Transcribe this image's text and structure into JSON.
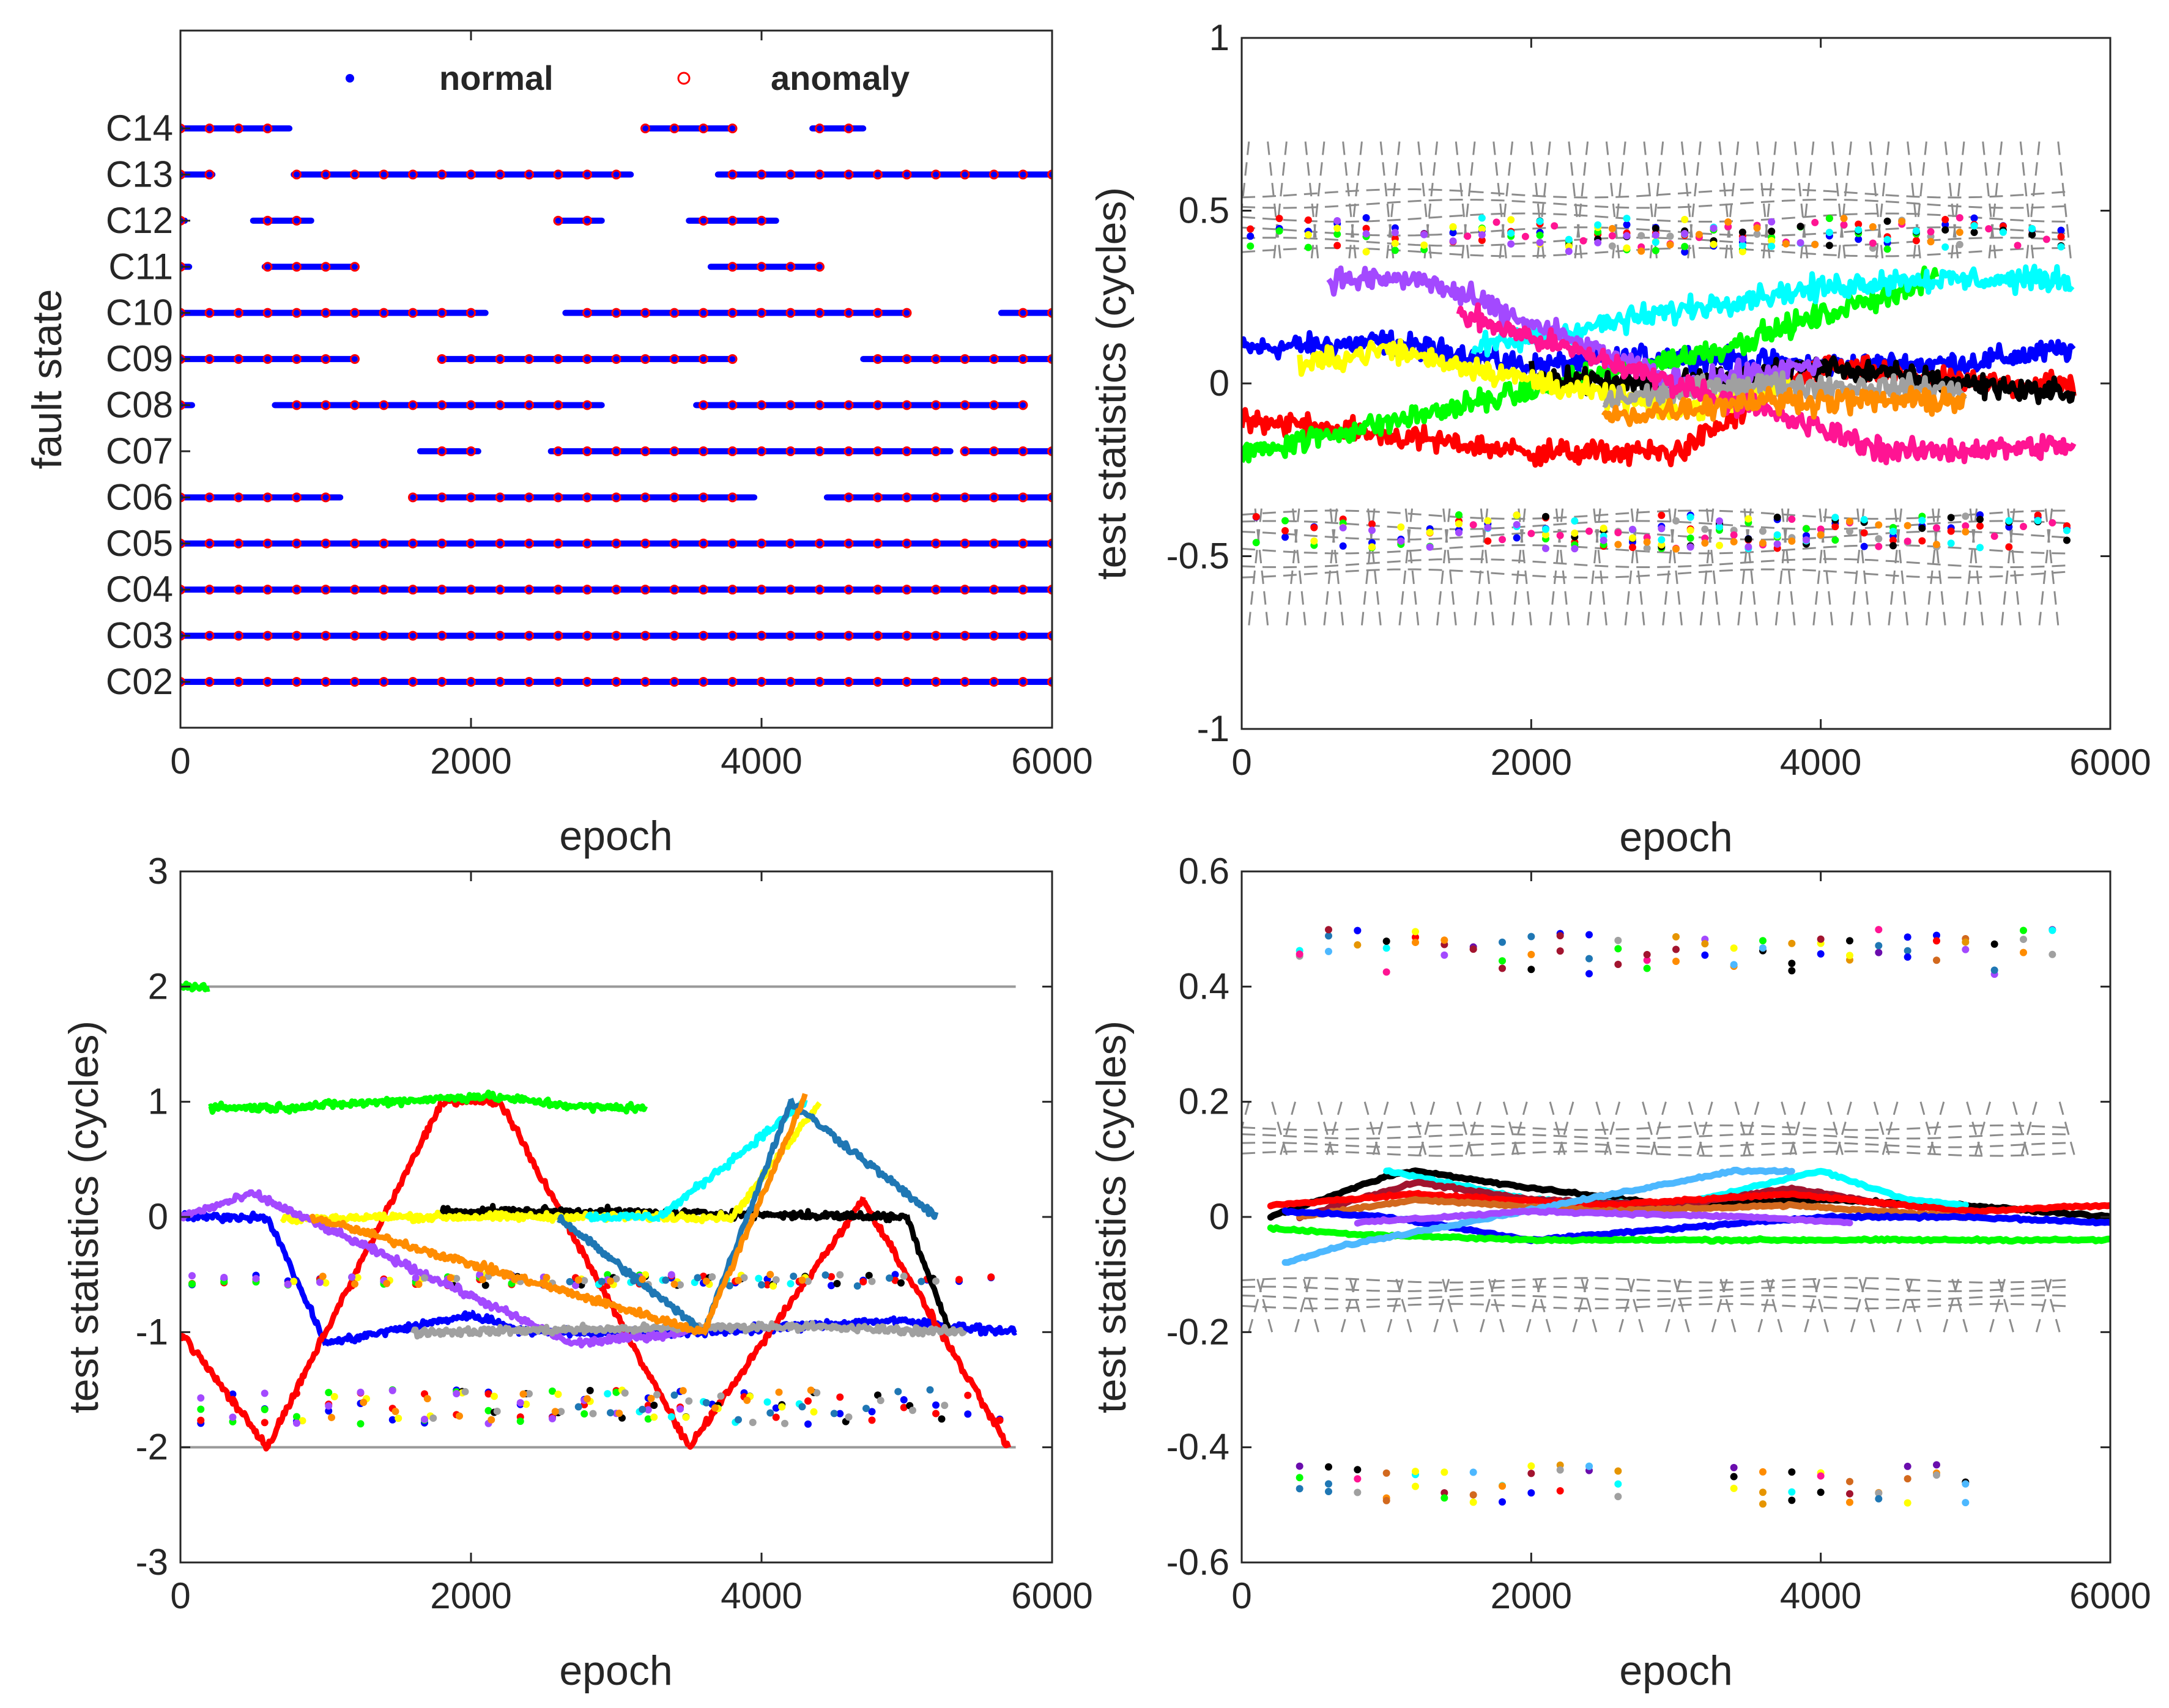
{
  "palette": [
    "#0000ff",
    "#ff0000",
    "#00ff00",
    "#000000",
    "#ffff00",
    "#00ffff",
    "#a349ff",
    "#a0a0a0",
    "#ff1493",
    "#ff8c00",
    "#e69500",
    "#1f77b4",
    "#d2691e",
    "#6a0dad",
    "#4db8ff",
    "#a2142f"
  ],
  "chart_data": [
    {
      "id": "panel-1",
      "type": "scatter",
      "title": "",
      "xlabel": "epoch",
      "ylabel": "fault state",
      "xlim": [
        0,
        6000
      ],
      "xticks": [
        0,
        2000,
        4000,
        6000
      ],
      "categories": [
        "C02",
        "C03",
        "C04",
        "C05",
        "C06",
        "C07",
        "C08",
        "C09",
        "C10",
        "C11",
        "C12",
        "C13",
        "C14"
      ],
      "legend": [
        {
          "label": "normal",
          "marker": "dot",
          "color": "#0000ff"
        },
        {
          "label": "anomaly",
          "marker": "circle",
          "color": "#ff0000"
        }
      ],
      "segments": {
        "C14": [
          [
            0,
            750
          ],
          [
            3200,
            3800
          ],
          [
            4350,
            4700
          ]
        ],
        "C13": [
          [
            0,
            220
          ],
          [
            780,
            3100
          ],
          [
            3700,
            6000
          ]
        ],
        "C12": [
          [
            0,
            30
          ],
          [
            500,
            900
          ],
          [
            2600,
            2900
          ],
          [
            3500,
            4100
          ]
        ],
        "C11": [
          [
            0,
            60
          ],
          [
            580,
            1200
          ],
          [
            3650,
            4400
          ]
        ],
        "C10": [
          [
            0,
            2100
          ],
          [
            2650,
            5000
          ],
          [
            5650,
            6000
          ]
        ],
        "C09": [
          [
            0,
            1200
          ],
          [
            1800,
            3800
          ],
          [
            4700,
            6000
          ]
        ],
        "C08": [
          [
            0,
            80
          ],
          [
            650,
            2900
          ],
          [
            3550,
            5800
          ]
        ],
        "C07": [
          [
            1650,
            2050
          ],
          [
            2550,
            5300
          ],
          [
            5400,
            6000
          ]
        ],
        "C06": [
          [
            0,
            1100
          ],
          [
            1600,
            3950
          ],
          [
            4450,
            6000
          ]
        ],
        "C05": [
          [
            0,
            6000
          ]
        ],
        "C04": [
          [
            0,
            6000
          ]
        ],
        "C03": [
          [
            0,
            6000
          ]
        ],
        "C02": [
          [
            0,
            6000
          ]
        ]
      }
    },
    {
      "id": "panel-2",
      "type": "scatter",
      "title": "",
      "xlabel": "epoch",
      "ylabel": "test statistics (cycles)",
      "xlim": [
        0,
        6000
      ],
      "ylim": [
        -1,
        1
      ],
      "xticks": [
        0,
        2000,
        4000,
        6000
      ],
      "yticks": [
        -1,
        -0.5,
        0,
        0.5,
        1
      ],
      "threshold_band": [
        -0.7,
        0.7
      ],
      "series": [
        {
          "color": "#0000ff",
          "points": [
            [
              0,
              0.1
            ],
            [
              1000,
              0.12
            ],
            [
              2000,
              0.05
            ],
            [
              3000,
              0.08
            ],
            [
              4000,
              0.05
            ],
            [
              5000,
              0.06
            ],
            [
              5750,
              0.1
            ]
          ]
        },
        {
          "color": "#ff0000",
          "points": [
            [
              0,
              -0.1
            ],
            [
              1000,
              -0.15
            ],
            [
              2000,
              -0.2
            ],
            [
              3000,
              -0.2
            ],
            [
              4000,
              0.05
            ],
            [
              5000,
              0.0
            ],
            [
              5750,
              0.0
            ]
          ]
        },
        {
          "color": "#00ff00",
          "points": [
            [
              0,
              -0.2
            ],
            [
              600,
              -0.15
            ],
            [
              3300,
              0.1
            ],
            [
              4400,
              0.25
            ],
            [
              4800,
              0.3
            ]
          ]
        },
        {
          "color": "#000000",
          "points": [
            [
              2000,
              0.02
            ],
            [
              3000,
              0.0
            ],
            [
              4000,
              0.05
            ],
            [
              5000,
              0.0
            ],
            [
              5750,
              -0.03
            ]
          ]
        },
        {
          "color": "#ffff00",
          "points": [
            [
              400,
              0.05
            ],
            [
              1000,
              0.1
            ],
            [
              3000,
              -0.08
            ],
            [
              3800,
              0.0
            ]
          ]
        },
        {
          "color": "#00ffff",
          "points": [
            [
              1600,
              0.1
            ],
            [
              3500,
              0.25
            ],
            [
              4500,
              0.3
            ],
            [
              5750,
              0.3
            ]
          ]
        },
        {
          "color": "#a349ff",
          "points": [
            [
              600,
              0.3
            ],
            [
              1250,
              0.3
            ],
            [
              3000,
              0.0
            ],
            [
              4000,
              0.05
            ]
          ]
        },
        {
          "color": "#a0a0a0",
          "points": [
            [
              2500,
              -0.05
            ],
            [
              3500,
              0.0
            ],
            [
              5000,
              -0.02
            ]
          ]
        },
        {
          "color": "#ff1493",
          "points": [
            [
              1500,
              0.2
            ],
            [
              4500,
              -0.2
            ],
            [
              5750,
              -0.18
            ]
          ]
        },
        {
          "color": "#ff8c00",
          "points": [
            [
              2500,
              -0.1
            ],
            [
              3500,
              -0.05
            ],
            [
              5000,
              -0.05
            ]
          ]
        }
      ]
    },
    {
      "id": "panel-3",
      "type": "scatter",
      "title": "",
      "xlabel": "epoch",
      "ylabel": "test statistics (cycles)",
      "xlim": [
        0,
        6000
      ],
      "ylim": [
        -3,
        3
      ],
      "xticks": [
        0,
        2000,
        4000,
        6000
      ],
      "yticks": [
        -3,
        -2,
        -1,
        0,
        1,
        2,
        3
      ],
      "bounds": [
        -2,
        2
      ],
      "series": [
        {
          "color": "#0000ff",
          "points": [
            [
              0,
              0.0
            ],
            [
              600,
              0.0
            ],
            [
              1000,
              -1.1
            ],
            [
              2000,
              -0.85
            ],
            [
              2400,
              -1.0
            ],
            [
              3600,
              -1.0
            ],
            [
              4900,
              -0.9
            ],
            [
              5750,
              -1.0
            ]
          ]
        },
        {
          "color": "#ff0000",
          "points": [
            [
              0,
              -1.0
            ],
            [
              600,
              -2.0
            ],
            [
              1800,
              1.0
            ],
            [
              2200,
              1.0
            ],
            [
              3500,
              -2.0
            ],
            [
              4700,
              0.15
            ],
            [
              5700,
              -2.0
            ]
          ]
        },
        {
          "color": "#00ff00",
          "points": [
            [
              0,
              2.0
            ],
            [
              200,
              2.0
            ],
            [
              200,
              0.95
            ],
            [
              700,
              0.95
            ],
            [
              2100,
              1.05
            ],
            [
              2800,
              0.95
            ],
            [
              3200,
              0.95
            ]
          ]
        },
        {
          "color": "#000000",
          "points": [
            [
              1800,
              0.05
            ],
            [
              2600,
              0.05
            ],
            [
              5000,
              0.0
            ],
            [
              5300,
              -1.0
            ]
          ]
        },
        {
          "color": "#ffff00",
          "points": [
            [
              700,
              -0.02
            ],
            [
              1500,
              0.0
            ],
            [
              3800,
              0.0
            ],
            [
              4400,
              1.0
            ]
          ]
        },
        {
          "color": "#00ffff",
          "points": [
            [
              2800,
              0.0
            ],
            [
              3300,
              0.0
            ],
            [
              4300,
              1.0
            ]
          ]
        },
        {
          "color": "#a349ff",
          "points": [
            [
              0,
              0.0
            ],
            [
              500,
              0.2
            ],
            [
              2700,
              -1.1
            ],
            [
              3500,
              -1.0
            ]
          ]
        },
        {
          "color": "#a0a0a0",
          "points": [
            [
              1600,
              -1.0
            ],
            [
              4200,
              -0.95
            ],
            [
              5400,
              -1.0
            ]
          ]
        },
        {
          "color": "#1f77b4",
          "points": [
            [
              2600,
              0.0
            ],
            [
              3600,
              -1.0
            ],
            [
              4200,
              1.0
            ],
            [
              5200,
              0.0
            ]
          ]
        },
        {
          "color": "#ff8c00",
          "points": [
            [
              900,
              0.0
            ],
            [
              3600,
              -1.0
            ],
            [
              4300,
              1.05
            ]
          ]
        }
      ]
    },
    {
      "id": "panel-4",
      "type": "line",
      "title": "",
      "xlabel": "epoch",
      "ylabel": "test statistics (cycles)",
      "xlim": [
        0,
        6000
      ],
      "ylim": [
        -0.6,
        0.6
      ],
      "xticks": [
        0,
        2000,
        4000,
        6000
      ],
      "yticks": [
        -0.6,
        -0.4,
        -0.2,
        0,
        0.2,
        0.4,
        0.6
      ],
      "threshold_band": [
        -0.2,
        0.2
      ],
      "upper_points_range": [
        0.42,
        0.5
      ],
      "lower_points_range": [
        -0.5,
        -0.43
      ],
      "series": [
        {
          "color": "#000000",
          "points": [
            [
              200,
              0.0
            ],
            [
              1000,
              0.07
            ],
            [
              1200,
              0.08
            ],
            [
              2000,
              0.05
            ],
            [
              3000,
              0.02
            ],
            [
              4000,
              0.03
            ],
            [
              5000,
              0.02
            ],
            [
              6000,
              0.0
            ]
          ]
        },
        {
          "color": "#00ffff",
          "points": [
            [
              1000,
              0.08
            ],
            [
              2000,
              0.03
            ],
            [
              3000,
              0.02
            ],
            [
              4000,
              0.08
            ],
            [
              4600,
              0.03
            ],
            [
              5000,
              0.02
            ]
          ]
        },
        {
          "color": "#a2142f",
          "points": [
            [
              400,
              0.0
            ],
            [
              1200,
              0.06
            ],
            [
              2000,
              0.03
            ],
            [
              3000,
              0.02
            ],
            [
              3800,
              0.05
            ],
            [
              4500,
              0.02
            ]
          ]
        },
        {
          "color": "#ff0000",
          "points": [
            [
              200,
              0.02
            ],
            [
              1200,
              0.04
            ],
            [
              2500,
              0.02
            ],
            [
              3800,
              0.04
            ],
            [
              5000,
              0.01
            ],
            [
              6000,
              0.02
            ]
          ]
        },
        {
          "color": "#d2691e",
          "points": [
            [
              400,
              0.0
            ],
            [
              1200,
              0.03
            ],
            [
              2500,
              0.01
            ],
            [
              3800,
              0.02
            ],
            [
              5000,
              0.0
            ]
          ]
        },
        {
          "color": "#0000ff",
          "points": [
            [
              300,
              0.01
            ],
            [
              1000,
              0.0
            ],
            [
              2000,
              -0.04
            ],
            [
              3000,
              -0.02
            ],
            [
              4000,
              0.0
            ],
            [
              5000,
              0.0
            ],
            [
              6000,
              -0.01
            ]
          ]
        },
        {
          "color": "#00ff00",
          "points": [
            [
              200,
              -0.02
            ],
            [
              800,
              -0.03
            ],
            [
              2000,
              -0.04
            ],
            [
              4000,
              -0.04
            ],
            [
              6000,
              -0.04
            ]
          ]
        },
        {
          "color": "#4db8ff",
          "points": [
            [
              300,
              -0.08
            ],
            [
              700,
              -0.05
            ],
            [
              3400,
              0.08
            ],
            [
              3800,
              0.08
            ]
          ]
        },
        {
          "color": "#a349ff",
          "points": [
            [
              800,
              -0.01
            ],
            [
              2000,
              0.01
            ],
            [
              3500,
              0.0
            ],
            [
              4200,
              -0.01
            ]
          ]
        }
      ]
    }
  ]
}
